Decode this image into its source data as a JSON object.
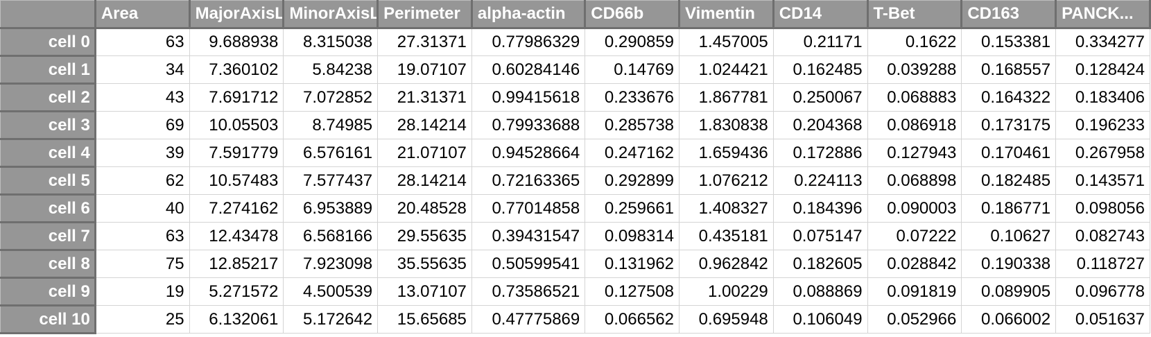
{
  "table": {
    "columns": [
      "Area",
      "MajorAxisLength",
      "MinorAxisLength",
      "Perimeter",
      "alpha-actin",
      "CD66b",
      "Vimentin",
      "CD14",
      "T-Bet",
      "CD163",
      "PANCK..."
    ],
    "rows": [
      {
        "label": "cell 0",
        "cells": [
          "63",
          "9.688938",
          "8.315038",
          "27.31371",
          "0.77986329",
          "0.290859",
          "1.457005",
          "0.21171",
          "0.1622",
          "0.153381",
          "0.334277"
        ]
      },
      {
        "label": "cell 1",
        "cells": [
          "34",
          "7.360102",
          "5.84238",
          "19.07107",
          "0.60284146",
          "0.14769",
          "1.024421",
          "0.162485",
          "0.039288",
          "0.168557",
          "0.128424"
        ]
      },
      {
        "label": "cell 2",
        "cells": [
          "43",
          "7.691712",
          "7.072852",
          "21.31371",
          "0.99415618",
          "0.233676",
          "1.867781",
          "0.250067",
          "0.068883",
          "0.164322",
          "0.183406"
        ]
      },
      {
        "label": "cell 3",
        "cells": [
          "69",
          "10.05503",
          "8.74985",
          "28.14214",
          "0.79933688",
          "0.285738",
          "1.830838",
          "0.204368",
          "0.086918",
          "0.173175",
          "0.196233"
        ]
      },
      {
        "label": "cell 4",
        "cells": [
          "39",
          "7.591779",
          "6.576161",
          "21.07107",
          "0.94528664",
          "0.247162",
          "1.659436",
          "0.172886",
          "0.127943",
          "0.170461",
          "0.267958"
        ]
      },
      {
        "label": "cell 5",
        "cells": [
          "62",
          "10.57483",
          "7.577437",
          "28.14214",
          "0.72163365",
          "0.292899",
          "1.076212",
          "0.224113",
          "0.068898",
          "0.182485",
          "0.143571"
        ]
      },
      {
        "label": "cell 6",
        "cells": [
          "40",
          "7.274162",
          "6.953889",
          "20.48528",
          "0.77014858",
          "0.259661",
          "1.408327",
          "0.184396",
          "0.090003",
          "0.186771",
          "0.098056"
        ]
      },
      {
        "label": "cell 7",
        "cells": [
          "63",
          "12.43478",
          "6.568166",
          "29.55635",
          "0.39431547",
          "0.098314",
          "0.435181",
          "0.075147",
          "0.07222",
          "0.10627",
          "0.082743"
        ]
      },
      {
        "label": "cell 8",
        "cells": [
          "75",
          "12.85217",
          "7.923098",
          "35.55635",
          "0.50599541",
          "0.131962",
          "0.962842",
          "0.182605",
          "0.028842",
          "0.190338",
          "0.118727"
        ]
      },
      {
        "label": "cell 9",
        "cells": [
          "19",
          "5.271572",
          "4.500539",
          "13.07107",
          "0.73586521",
          "0.127508",
          "1.00229",
          "0.088869",
          "0.091819",
          "0.089905",
          "0.096778"
        ]
      },
      {
        "label": "cell 10",
        "cells": [
          "25",
          "6.132061",
          "5.172642",
          "15.65685",
          "0.47775869",
          "0.066562",
          "0.695948",
          "0.106049",
          "0.052966",
          "0.066002",
          "0.051637"
        ]
      }
    ]
  },
  "colors": {
    "header_bg": "#969696",
    "header_text": "#ffffff",
    "cell_text": "#000000",
    "grid_line": "#d4d4d4"
  }
}
